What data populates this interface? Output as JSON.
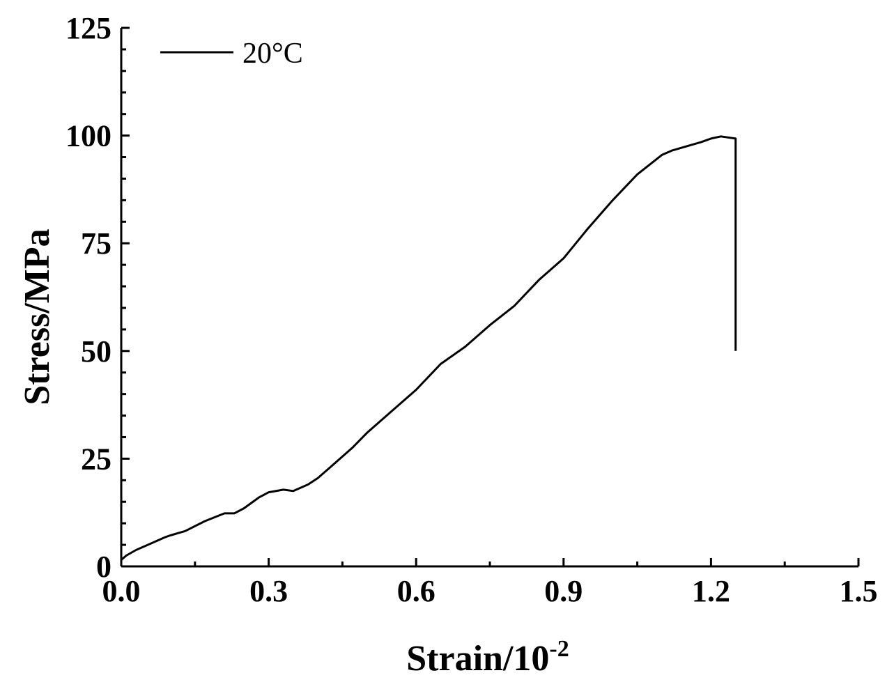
{
  "chart_data": {
    "type": "line",
    "title": "",
    "xlabel": "Strain/10",
    "xlabel_superscript": "-2",
    "ylabel": "Stress/MPa",
    "xlim": [
      0,
      1.5
    ],
    "ylim": [
      0,
      125
    ],
    "x_ticks": [
      "0.0",
      "0.3",
      "0.6",
      "0.9",
      "1.2",
      "1.5"
    ],
    "y_ticks": [
      "0",
      "25",
      "50",
      "75",
      "100",
      "125"
    ],
    "grid": false,
    "legend_position": "top-left",
    "series": [
      {
        "name": "20°C",
        "color": "#000000",
        "x": [
          0.0,
          0.01,
          0.03,
          0.06,
          0.09,
          0.1,
          0.13,
          0.17,
          0.21,
          0.23,
          0.25,
          0.28,
          0.3,
          0.33,
          0.35,
          0.38,
          0.4,
          0.43,
          0.47,
          0.5,
          0.55,
          0.6,
          0.65,
          0.7,
          0.75,
          0.8,
          0.85,
          0.9,
          0.95,
          1.0,
          1.05,
          1.1,
          1.12,
          1.15,
          1.18,
          1.2,
          1.22,
          1.25,
          1.25
        ],
        "y": [
          1.5,
          2.5,
          3.8,
          5.3,
          6.8,
          7.2,
          8.2,
          10.5,
          12.3,
          12.3,
          13.5,
          16.0,
          17.2,
          17.8,
          17.5,
          19.0,
          20.5,
          23.5,
          27.5,
          31.0,
          36.0,
          41.0,
          47.0,
          51.0,
          56.0,
          60.5,
          66.5,
          71.5,
          78.5,
          85.0,
          91.0,
          95.5,
          96.5,
          97.5,
          98.5,
          99.3,
          99.8,
          99.3,
          50.0
        ]
      }
    ]
  }
}
